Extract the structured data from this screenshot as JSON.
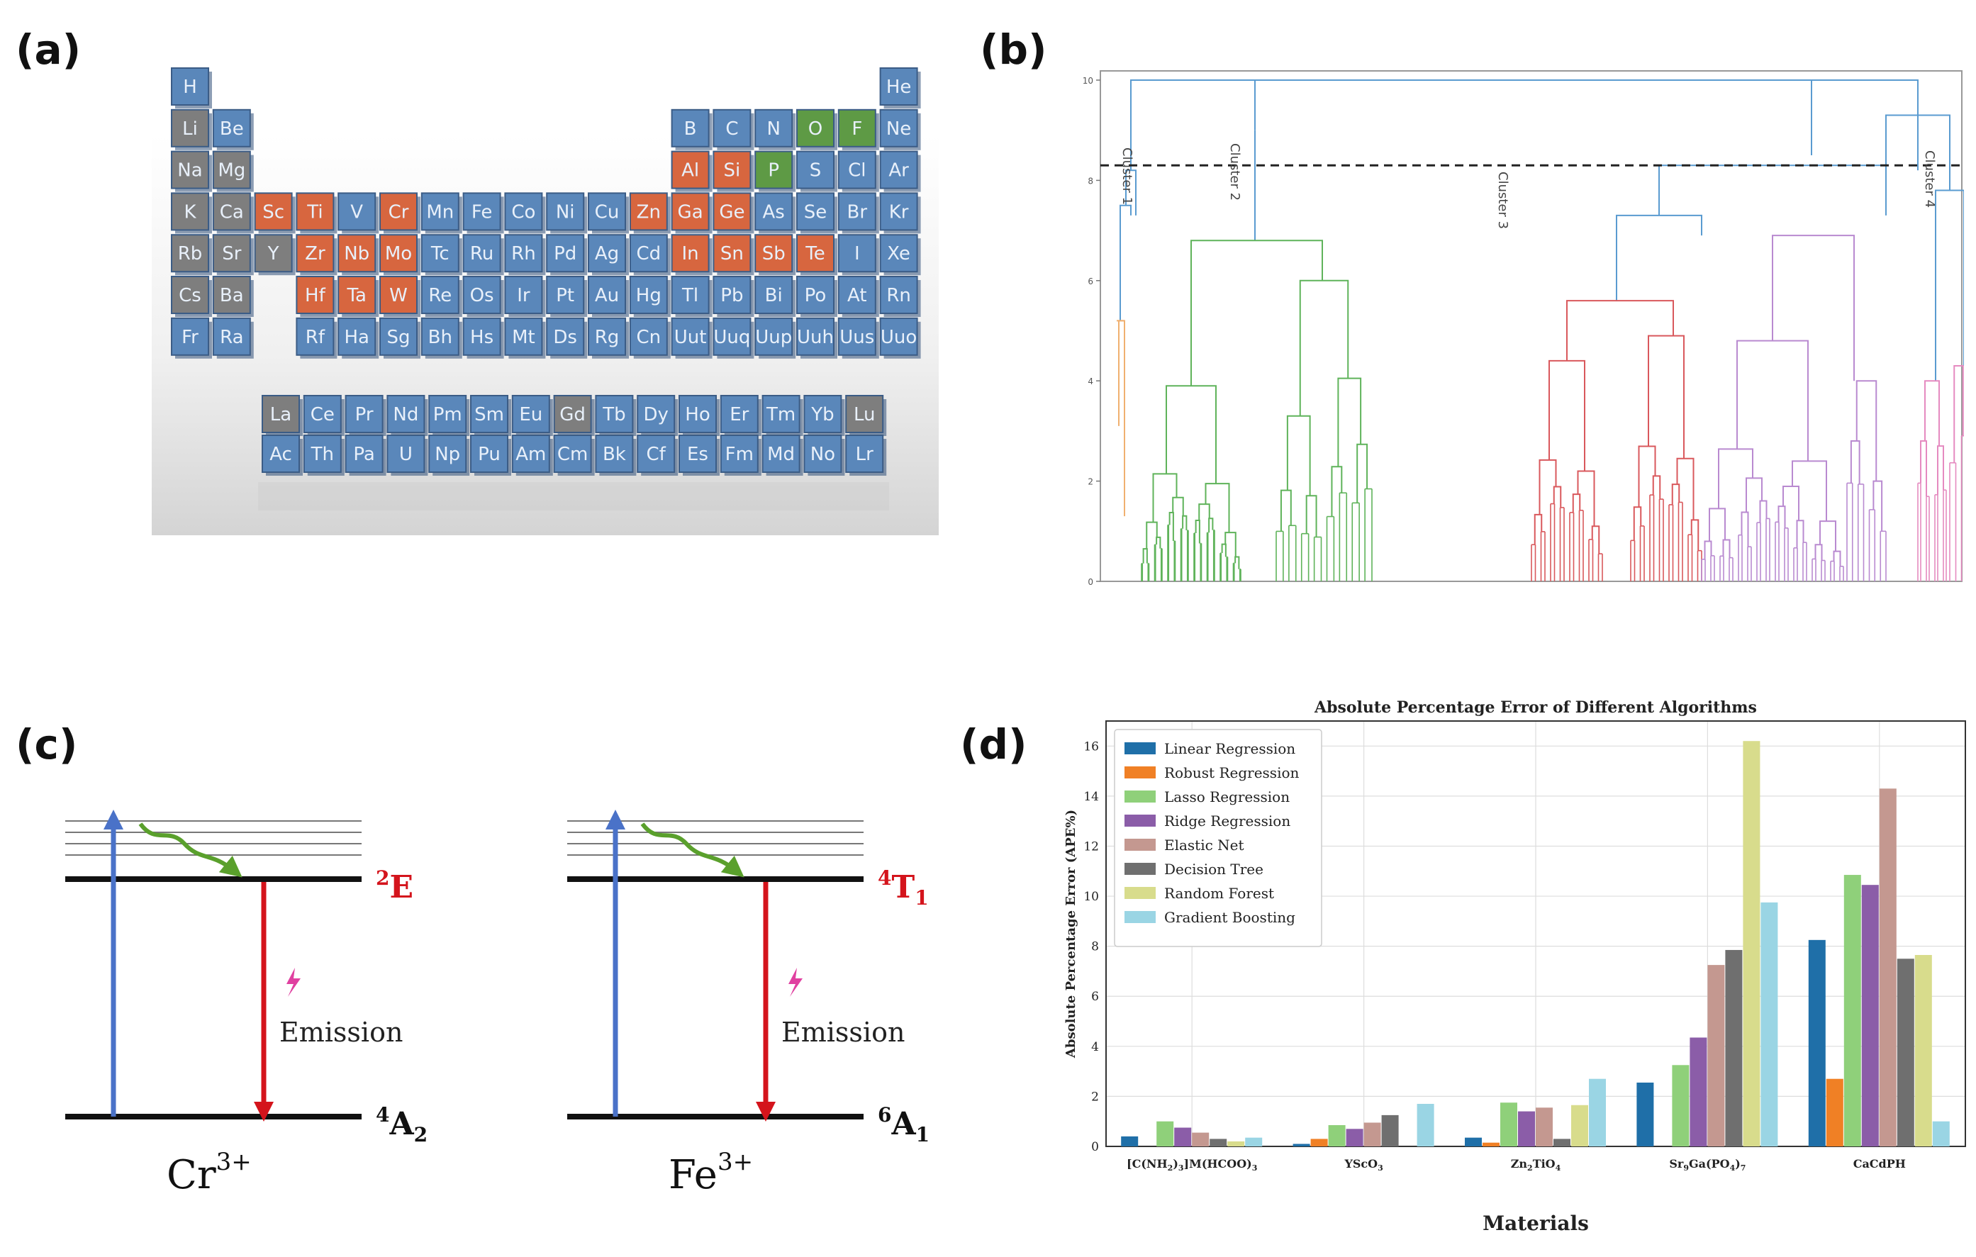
{
  "panels": {
    "a": "(a)",
    "b": "(b)",
    "c": "(c)",
    "d": "(d)"
  },
  "periodic_table": {
    "main_rows": [
      [
        [
          "H",
          "b"
        ],
        null,
        null,
        null,
        null,
        null,
        null,
        null,
        null,
        null,
        null,
        null,
        null,
        null,
        null,
        null,
        null,
        [
          "He",
          "b"
        ]
      ],
      [
        [
          "Li",
          "g"
        ],
        [
          "Be",
          "b"
        ],
        null,
        null,
        null,
        null,
        null,
        null,
        null,
        null,
        null,
        null,
        [
          "B",
          "b"
        ],
        [
          "C",
          "b"
        ],
        [
          "N",
          "b"
        ],
        [
          "O",
          "v"
        ],
        [
          "F",
          "v"
        ],
        [
          "Ne",
          "b"
        ]
      ],
      [
        [
          "Na",
          "g"
        ],
        [
          "Mg",
          "g"
        ],
        null,
        null,
        null,
        null,
        null,
        null,
        null,
        null,
        null,
        null,
        [
          "Al",
          "o"
        ],
        [
          "Si",
          "o"
        ],
        [
          "P",
          "v"
        ],
        [
          "S",
          "b"
        ],
        [
          "Cl",
          "b"
        ],
        [
          "Ar",
          "b"
        ]
      ],
      [
        [
          "K",
          "g"
        ],
        [
          "Ca",
          "g"
        ],
        [
          "Sc",
          "o"
        ],
        [
          "Ti",
          "o"
        ],
        [
          "V",
          "b"
        ],
        [
          "Cr",
          "o"
        ],
        [
          "Mn",
          "b"
        ],
        [
          "Fe",
          "b"
        ],
        [
          "Co",
          "b"
        ],
        [
          "Ni",
          "b"
        ],
        [
          "Cu",
          "b"
        ],
        [
          "Zn",
          "o"
        ],
        [
          "Ga",
          "o"
        ],
        [
          "Ge",
          "o"
        ],
        [
          "As",
          "b"
        ],
        [
          "Se",
          "b"
        ],
        [
          "Br",
          "b"
        ],
        [
          "Kr",
          "b"
        ]
      ],
      [
        [
          "Rb",
          "g"
        ],
        [
          "Sr",
          "g"
        ],
        [
          "Y",
          "g"
        ],
        [
          "Zr",
          "o"
        ],
        [
          "Nb",
          "o"
        ],
        [
          "Mo",
          "o"
        ],
        [
          "Tc",
          "b"
        ],
        [
          "Ru",
          "b"
        ],
        [
          "Rh",
          "b"
        ],
        [
          "Pd",
          "b"
        ],
        [
          "Ag",
          "b"
        ],
        [
          "Cd",
          "b"
        ],
        [
          "In",
          "o"
        ],
        [
          "Sn",
          "o"
        ],
        [
          "Sb",
          "o"
        ],
        [
          "Te",
          "o"
        ],
        [
          "I",
          "b"
        ],
        [
          "Xe",
          "b"
        ]
      ],
      [
        [
          "Cs",
          "g"
        ],
        [
          "Ba",
          "g"
        ],
        null,
        [
          "Hf",
          "o"
        ],
        [
          "Ta",
          "o"
        ],
        [
          "W",
          "o"
        ],
        [
          "Re",
          "b"
        ],
        [
          "Os",
          "b"
        ],
        [
          "Ir",
          "b"
        ],
        [
          "Pt",
          "b"
        ],
        [
          "Au",
          "b"
        ],
        [
          "Hg",
          "b"
        ],
        [
          "Tl",
          "b"
        ],
        [
          "Pb",
          "b"
        ],
        [
          "Bi",
          "b"
        ],
        [
          "Po",
          "b"
        ],
        [
          "At",
          "b"
        ],
        [
          "Rn",
          "b"
        ]
      ],
      [
        [
          "Fr",
          "b"
        ],
        [
          "Ra",
          "b"
        ],
        null,
        [
          "Rf",
          "b"
        ],
        [
          "Ha",
          "b"
        ],
        [
          "Sg",
          "b"
        ],
        [
          "Bh",
          "b"
        ],
        [
          "Hs",
          "b"
        ],
        [
          "Mt",
          "b"
        ],
        [
          "Ds",
          "b"
        ],
        [
          "Rg",
          "b"
        ],
        [
          "Cn",
          "b"
        ],
        [
          "Uut",
          "b"
        ],
        [
          "Uuq",
          "b"
        ],
        [
          "Uup",
          "b"
        ],
        [
          "Uuh",
          "b"
        ],
        [
          "Uus",
          "b"
        ],
        [
          "Uuo",
          "b"
        ]
      ]
    ],
    "f_rows": [
      [
        [
          "La",
          "g"
        ],
        [
          "Ce",
          "b"
        ],
        [
          "Pr",
          "b"
        ],
        [
          "Nd",
          "b"
        ],
        [
          "Pm",
          "b"
        ],
        [
          "Sm",
          "b"
        ],
        [
          "Eu",
          "b"
        ],
        [
          "Gd",
          "g"
        ],
        [
          "Tb",
          "b"
        ],
        [
          "Dy",
          "b"
        ],
        [
          "Ho",
          "b"
        ],
        [
          "Er",
          "b"
        ],
        [
          "Tm",
          "b"
        ],
        [
          "Yb",
          "b"
        ],
        [
          "Lu",
          "g"
        ]
      ],
      [
        [
          "Ac",
          "b"
        ],
        [
          "Th",
          "b"
        ],
        [
          "Pa",
          "b"
        ],
        [
          "U",
          "b"
        ],
        [
          "Np",
          "b"
        ],
        [
          "Pu",
          "b"
        ],
        [
          "Am",
          "b"
        ],
        [
          "Cm",
          "b"
        ],
        [
          "Bk",
          "b"
        ],
        [
          "Cf",
          "b"
        ],
        [
          "Es",
          "b"
        ],
        [
          "Fm",
          "b"
        ],
        [
          "Md",
          "b"
        ],
        [
          "No",
          "b"
        ],
        [
          "Lr",
          "b"
        ]
      ]
    ],
    "colors": {
      "b": "#5a87ba",
      "g": "#7e7e7e",
      "o": "#d7663f",
      "v": "#5e9a45"
    }
  },
  "dendrogram": {
    "y_ticks": [
      "0",
      "2",
      "4",
      "6",
      "8",
      "10"
    ],
    "threshold": 8.3,
    "clusters": [
      "Cluster 1",
      "Cluster 2",
      "Cluster 3",
      "Cluster 4"
    ],
    "colors": {
      "orange": "#f0b070",
      "blue": "#5a9bd0",
      "green": "#5fb35a",
      "red": "#d9585c",
      "purple": "#b98ad0",
      "pink": "#e58ac0"
    }
  },
  "energy_diagrams": [
    {
      "ion": "Cr",
      "charge": "3+",
      "excited": "E",
      "excited_sup": "2",
      "excited_sub": "",
      "ground": "A",
      "ground_sup": "4",
      "ground_sub": "2",
      "emission": "Emission"
    },
    {
      "ion": "Fe",
      "charge": "3+",
      "excited": "T",
      "excited_sup": "4",
      "excited_sub": "1",
      "ground": "A",
      "ground_sup": "6",
      "ground_sub": "1",
      "emission": "Emission"
    }
  ],
  "chart_data": {
    "type": "bar",
    "title": "Absolute Percentage Error of Different Algorithms",
    "xlabel": "Materials",
    "ylabel": "Absolute Percentage Error (APE%)",
    "ylim": [
      0,
      17
    ],
    "yticks": [
      "0",
      "2",
      "4",
      "6",
      "8",
      "10",
      "12",
      "14",
      "16"
    ],
    "grid": true,
    "legend_position": "top-left",
    "categories": [
      "[C(NH2)3]M(HCOO)3",
      "YScO3",
      "Zn2TiO4",
      "Sr9Ga(PO4)7",
      "CaCdPH"
    ],
    "category_labels": [
      {
        "parts": [
          [
            "[C(NH",
            ""
          ],
          [
            "2",
            "sub"
          ],
          [
            ")",
            ""
          ],
          [
            "3",
            "sub"
          ],
          [
            "]M(HCOO)",
            ""
          ],
          [
            "3",
            "sub"
          ]
        ]
      },
      {
        "parts": [
          [
            "YScO",
            ""
          ],
          [
            "3",
            "sub"
          ]
        ]
      },
      {
        "parts": [
          [
            "Zn",
            ""
          ],
          [
            "2",
            "sub"
          ],
          [
            "TiO",
            ""
          ],
          [
            "4",
            "sub"
          ]
        ]
      },
      {
        "parts": [
          [
            "Sr",
            ""
          ],
          [
            "9",
            "sub"
          ],
          [
            "Ga(PO",
            ""
          ],
          [
            "4",
            "sub"
          ],
          [
            ")",
            ""
          ],
          [
            "7",
            "sub"
          ]
        ]
      },
      {
        "parts": [
          [
            "CaCdPH",
            ""
          ]
        ]
      }
    ],
    "series": [
      {
        "name": "Linear Regression",
        "color": "#1f6fa8",
        "values": [
          0.4,
          0.1,
          0.35,
          2.55,
          8.25
        ]
      },
      {
        "name": "Robust Regression",
        "color": "#f08025",
        "values": [
          0.0,
          0.3,
          0.15,
          0.0,
          2.7
        ]
      },
      {
        "name": "Lasso Regression",
        "color": "#8fd07a",
        "values": [
          1.0,
          0.85,
          1.75,
          3.25,
          10.85
        ]
      },
      {
        "name": "Ridge Regression",
        "color": "#8b5da8",
        "values": [
          0.75,
          0.7,
          1.4,
          4.35,
          10.45
        ]
      },
      {
        "name": "Elastic Net",
        "color": "#c49890",
        "values": [
          0.55,
          0.95,
          1.55,
          7.25,
          14.3
        ]
      },
      {
        "name": "Decision Tree",
        "color": "#6f6f6f",
        "values": [
          0.3,
          1.25,
          0.3,
          7.85,
          7.5
        ]
      },
      {
        "name": "Random Forest",
        "color": "#d8dc8c",
        "values": [
          0.2,
          0.0,
          1.65,
          16.2,
          7.65
        ]
      },
      {
        "name": "Gradient Boosting",
        "color": "#9ad5e4",
        "values": [
          0.35,
          1.7,
          2.7,
          9.75,
          1.0
        ]
      }
    ]
  }
}
